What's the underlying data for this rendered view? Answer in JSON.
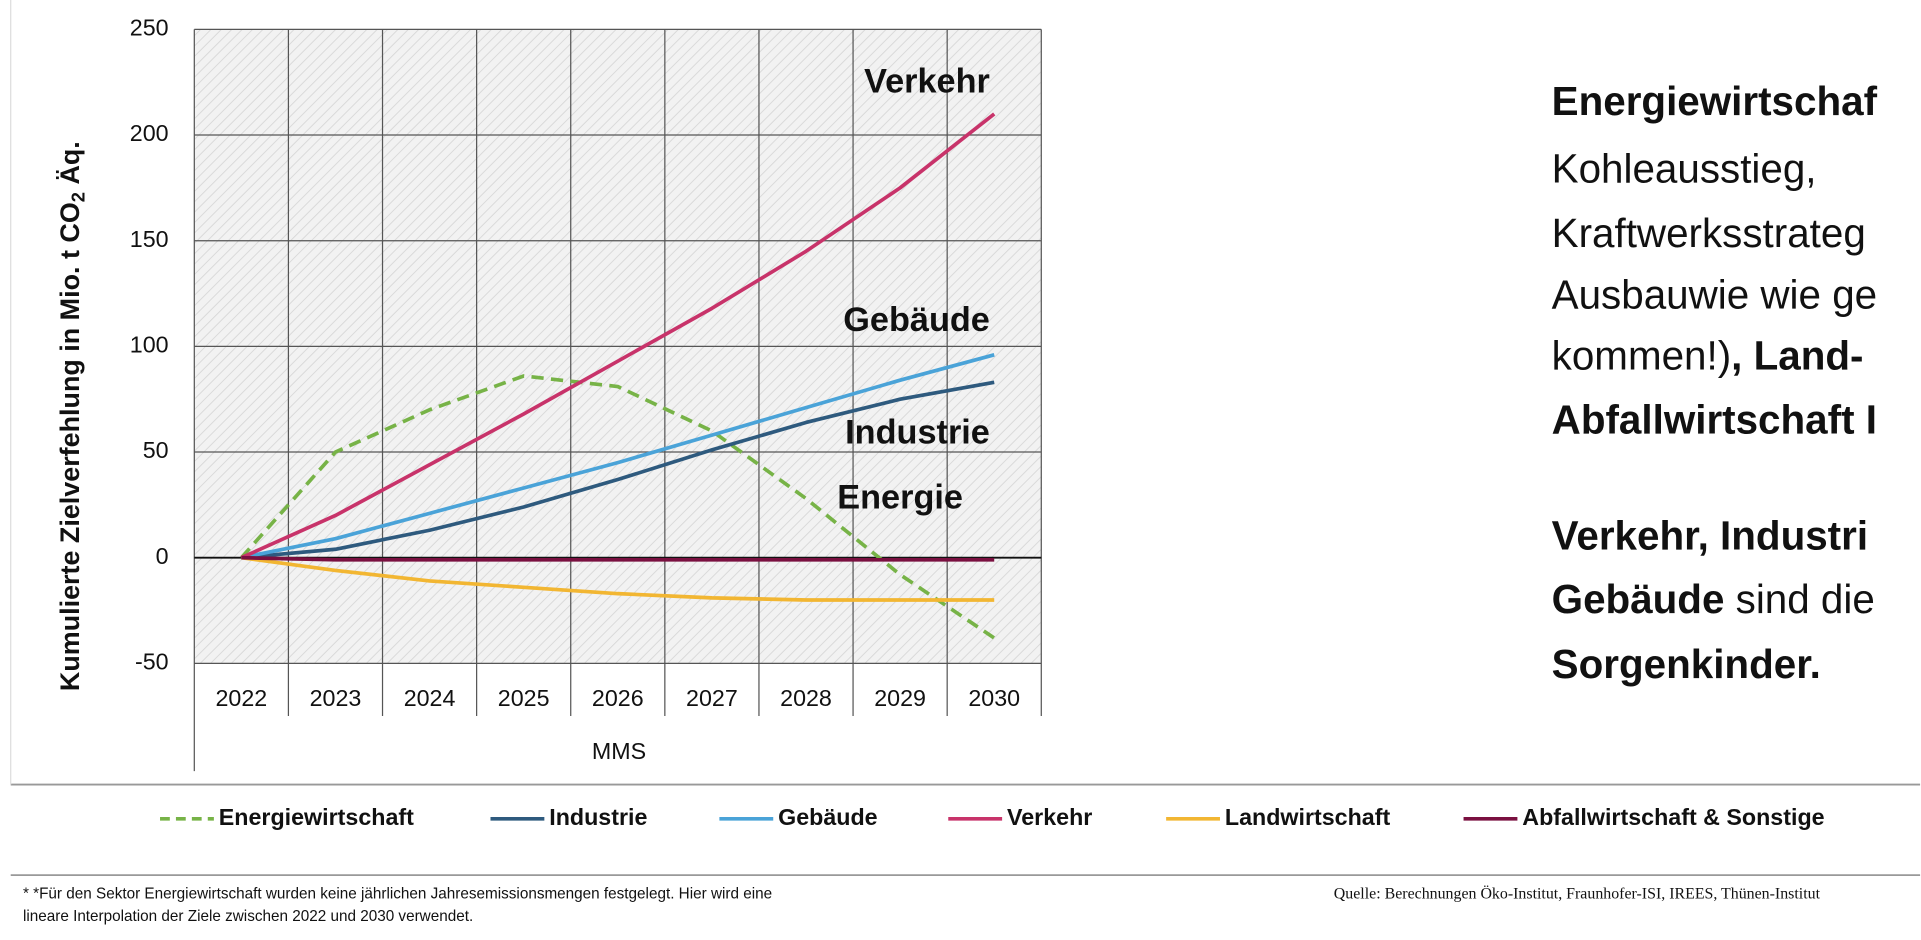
{
  "chart_data": {
    "type": "line",
    "y_label": {
      "text": "Kumulierte Zielverfehlung in Mio. t CO",
      "sub": "2",
      "after": " Äq."
    },
    "x_label": "MMS",
    "categories": [
      "2022",
      "2023",
      "2024",
      "2025",
      "2026",
      "2027",
      "2028",
      "2029",
      "2030"
    ],
    "ylim": [
      -50,
      250
    ],
    "yticks": [
      -50,
      0,
      50,
      100,
      150,
      200,
      250
    ],
    "grid": true,
    "series": [
      {
        "name": "Energiewirtschaft",
        "color": "#77b347",
        "dashed": true,
        "values": [
          0,
          50,
          70,
          86,
          81,
          60,
          28,
          -8,
          -38
        ]
      },
      {
        "name": "Industrie",
        "color": "#2e5a7e",
        "values": [
          0,
          4,
          13,
          24,
          37,
          51,
          64,
          75,
          83
        ]
      },
      {
        "name": "Gebäude",
        "color": "#4aa3d8",
        "values": [
          0,
          9,
          21,
          33,
          45,
          58,
          71,
          84,
          96
        ]
      },
      {
        "name": "Verkehr",
        "color": "#c8336a",
        "values": [
          0,
          20,
          44,
          68,
          93,
          118,
          145,
          175,
          210
        ]
      },
      {
        "name": "Landwirtschaft",
        "color": "#f2b632",
        "values": [
          0,
          -6,
          -11,
          -14,
          -17,
          -19,
          -20,
          -20,
          -20
        ]
      },
      {
        "name": "Abfallwirtschaft & Sonstige",
        "color": "#7a1040",
        "values": [
          0,
          -1,
          -1,
          -1,
          -1,
          -1,
          -1,
          -1,
          -1
        ]
      }
    ],
    "annotations": [
      "Verkehr",
      "Gebäude",
      "Industrie",
      "Energie"
    ]
  },
  "side_text": [
    [
      {
        "text": "Energiewirtschaf",
        "bold": true
      }
    ],
    [
      {
        "text": "Kohleausstieg,",
        "bold": false
      }
    ],
    [
      {
        "text": "Kraftwerksstrateg",
        "bold": false
      }
    ],
    [
      {
        "text": "Ausbauwie wie ge",
        "bold": false
      }
    ],
    [
      {
        "text": "kommen!)",
        "bold": false
      },
      {
        "text": ", Land-",
        "bold": true
      }
    ],
    [
      {
        "text": "Abfallwirtschaft I",
        "bold": true
      }
    ],
    [
      {
        "text": "Verkehr, Industri",
        "bold": true
      }
    ],
    [
      {
        "text": "Gebäude",
        "bold": true
      },
      {
        "text": " sind die",
        "bold": false
      }
    ],
    [
      {
        "text": "Sorgenkinder.",
        "bold": true
      }
    ]
  ],
  "footnote": [
    "* *Für den Sektor Energiewirtschaft wurden keine jährlichen Jahresemissionsmengen festgelegt. Hier wird eine",
    "lineare Interpolation der Ziele zwischen 2022 und 2030 verwendet."
  ],
  "source": "Quelle: Berechnungen Öko-Institut, Fraunhofer-ISI, IREES, Thünen-Institut"
}
